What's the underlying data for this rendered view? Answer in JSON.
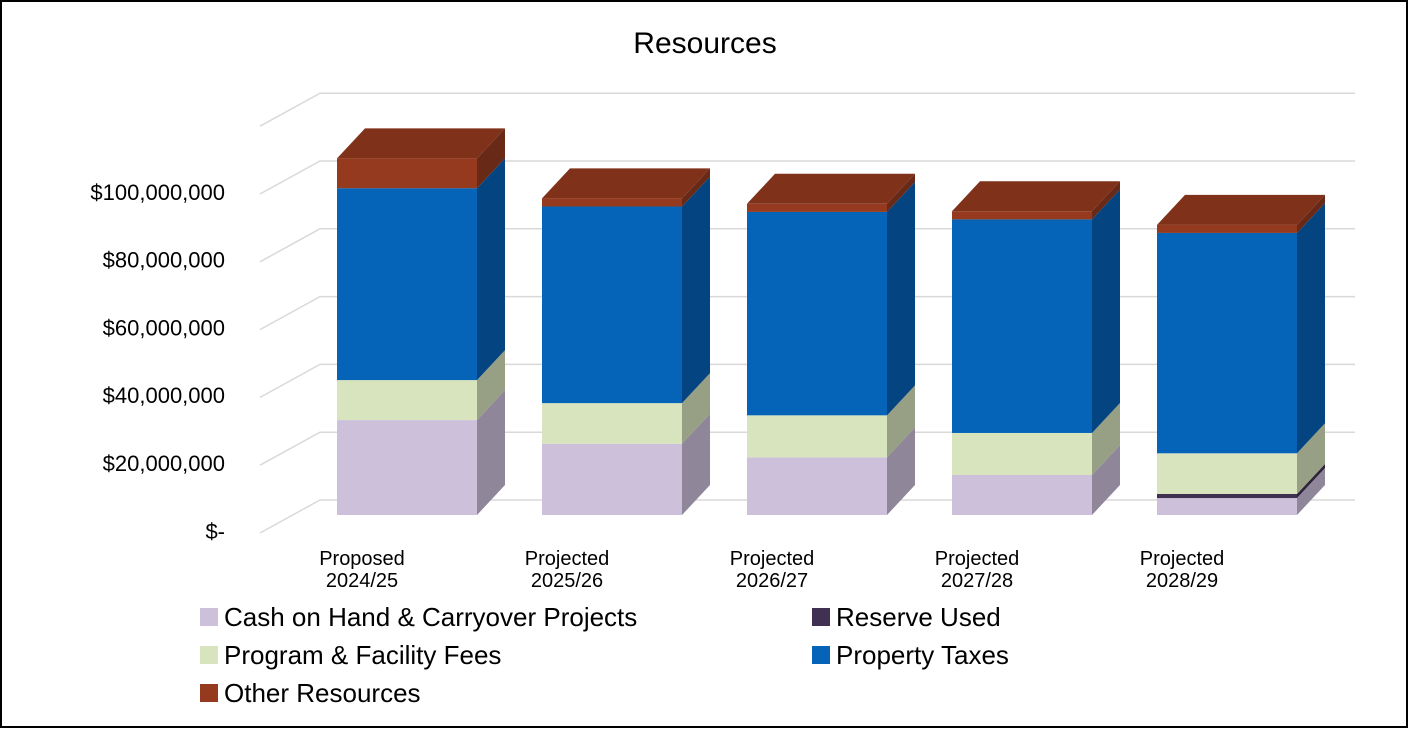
{
  "chart_data": {
    "type": "bar3d_stacked",
    "title": "Resources",
    "categories": [
      "Proposed 2024/25",
      "Projected 2025/26",
      "Projected 2026/27",
      "Projected 2027/28",
      "Projected 2028/29"
    ],
    "series": [
      {
        "name": "Cash on Hand & Carryover Projects",
        "color": "#ccc0da",
        "values": [
          28000000,
          21000000,
          17000000,
          11800000,
          5000000
        ]
      },
      {
        "name": "Reserve Used",
        "color": "#403152",
        "values": [
          0,
          0,
          0,
          0,
          1200000
        ]
      },
      {
        "name": "Program & Facility Fees",
        "color": "#d7e4bd",
        "values": [
          11800000,
          12000000,
          12400000,
          12400000,
          12000000
        ]
      },
      {
        "name": "Property Taxes",
        "color": "#0563b8",
        "values": [
          56600000,
          58000000,
          60000000,
          63000000,
          65000000
        ]
      },
      {
        "name": "Other Resources",
        "color": "#953a1f",
        "values": [
          8800000,
          2400000,
          2400000,
          2400000,
          2400000
        ]
      }
    ],
    "ylim": [
      0,
      120000000
    ],
    "yticks": [
      {
        "value": 0,
        "label": "$-"
      },
      {
        "value": 20000000,
        "label": "$20,000,000"
      },
      {
        "value": 40000000,
        "label": "$40,000,000"
      },
      {
        "value": 60000000,
        "label": "$60,000,000"
      },
      {
        "value": 80000000,
        "label": "$80,000,000"
      },
      {
        "value": 100000000,
        "label": "$100,000,000"
      }
    ],
    "grid": true,
    "legend": "bottom"
  }
}
